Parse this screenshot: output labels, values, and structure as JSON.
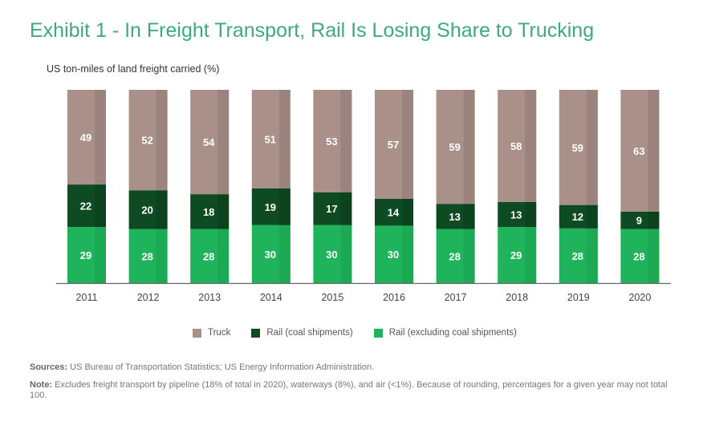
{
  "colors": {
    "title": "#3eaa7d",
    "truck": "#a99089",
    "truck_shade": "#8f7a74",
    "rail_coal": "#0e4a22",
    "rail_coal_shade": "#0b3d1c",
    "rail_excl": "#1fb35b",
    "rail_excl_shade": "#18a14f",
    "axis": "#666666"
  },
  "title": "Exhibit 1 - In Freight Transport, Rail Is Losing Share to Trucking",
  "legend": {
    "truck": "Truck",
    "rail_coal": "Rail (coal shipments)",
    "rail_excl": "Rail (excluding coal shipments)"
  },
  "sources_label": "Sources:",
  "sources_text": "US Bureau of Transportation Statistics; US Energy Information Administration.",
  "note_label": "Note:",
  "note_text": "Excludes freight transport by pipeline (18% of total in 2020), waterways (8%), and air (<1%). Because of rounding, percentages for a given year may not total 100.",
  "chart_data": {
    "type": "bar",
    "stacked": true,
    "title": "Exhibit 1 - In Freight Transport, Rail Is Losing Share to Trucking",
    "ylabel": "US ton-miles of land freight carried (%)",
    "xlabel": "",
    "categories": [
      "2011",
      "2012",
      "2013",
      "2014",
      "2015",
      "2016",
      "2017",
      "2018",
      "2019",
      "2020"
    ],
    "series": [
      {
        "name": "Rail (excluding coal shipments)",
        "values": [
          29,
          28,
          28,
          30,
          30,
          30,
          28,
          29,
          28,
          28
        ]
      },
      {
        "name": "Rail (coal shipments)",
        "values": [
          22,
          20,
          18,
          19,
          17,
          14,
          13,
          13,
          12,
          9
        ]
      },
      {
        "name": "Truck",
        "values": [
          49,
          52,
          54,
          51,
          53,
          57,
          59,
          58,
          59,
          63
        ]
      }
    ],
    "ylim": [
      0,
      100
    ],
    "legend_position": "bottom",
    "grid": false
  }
}
